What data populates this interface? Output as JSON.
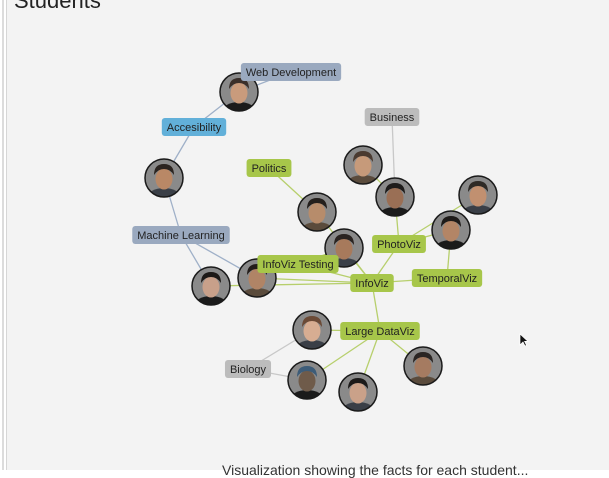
{
  "header": {
    "title": "Students"
  },
  "footer": {
    "text": "Visualization showing the facts for each student..."
  },
  "colors": {
    "infoviz": "#a7c64a",
    "ml": "#9aa9bf",
    "web": "#9aa9bf",
    "accessibility": "#62b0d9",
    "business": "#bcbcbc",
    "biology": "#bcbcbc",
    "link_green": "#b7cf6c",
    "link_blue": "#9fb0c8",
    "link_gray": "#c8c8c8"
  },
  "topics": [
    {
      "id": "web",
      "label": "Web Development",
      "color": "#9aa9bf"
    },
    {
      "id": "access",
      "label": "Accesibility",
      "color": "#62b0d9"
    },
    {
      "id": "business",
      "label": "Business",
      "color": "#bcbcbc"
    },
    {
      "id": "politics",
      "label": "Politics",
      "color": "#a7c64a"
    },
    {
      "id": "ml",
      "label": "Machine Learning",
      "color": "#9aa9bf"
    },
    {
      "id": "photoviz",
      "label": "PhotoViz",
      "color": "#a7c64a"
    },
    {
      "id": "ivtesting",
      "label": "InfoViz Testing",
      "color": "#a7c64a"
    },
    {
      "id": "infoviz",
      "label": "InfoViz",
      "color": "#a7c64a"
    },
    {
      "id": "temporal",
      "label": "TemporalViz",
      "color": "#a7c64a"
    },
    {
      "id": "large",
      "label": "Large DataViz",
      "color": "#a7c64a"
    },
    {
      "id": "biology",
      "label": "Biology",
      "color": "#bcbcbc"
    }
  ]
}
